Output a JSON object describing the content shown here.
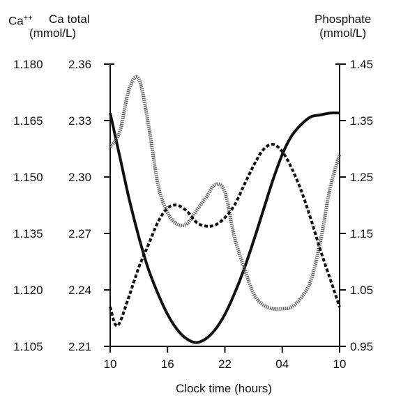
{
  "chart_data": {
    "type": "line",
    "title": "",
    "xlabel": "Clock time (hours)",
    "x_ticks": [
      "10",
      "16",
      "22",
      "04",
      "10"
    ],
    "x_tick_hours_elapsed": [
      0,
      6,
      12,
      18,
      24
    ],
    "xlim": [
      0,
      24
    ],
    "left_axis_1": {
      "label_base": "Ca",
      "label_sup": "++",
      "ticks": [
        "1.180",
        "1.165",
        "1.150",
        "1.135",
        "1.120",
        "1.105"
      ],
      "ylim": [
        1.105,
        1.18
      ]
    },
    "left_axis_2": {
      "label_line1": "Ca total",
      "label_line2": "(mmol/L)",
      "ticks": [
        "2.36",
        "2.33",
        "2.30",
        "2.27",
        "2.24",
        "2.21"
      ],
      "ylim": [
        2.21,
        2.36
      ]
    },
    "right_axis": {
      "label_line1": "Phosphate",
      "label_line2": "(mmol/L)",
      "ticks": [
        "1.45",
        "1.35",
        "1.25",
        "1.15",
        "1.05",
        "0.95"
      ],
      "ylim": [
        0.95,
        1.45
      ]
    },
    "grid": false,
    "legend": "none",
    "series": [
      {
        "axis": "left_axis_2",
        "style": "solid",
        "x": [
          0,
          1,
          2,
          3,
          4,
          5,
          6,
          7,
          8,
          9,
          10,
          11,
          12,
          13,
          14,
          15,
          16,
          17,
          18,
          19,
          20,
          21,
          22,
          23,
          24
        ],
        "y": [
          2.334,
          2.311,
          2.288,
          2.268,
          2.251,
          2.238,
          2.227,
          2.219,
          2.214,
          2.212,
          2.214,
          2.219,
          2.227,
          2.238,
          2.251,
          2.266,
          2.282,
          2.298,
          2.312,
          2.322,
          2.328,
          2.332,
          2.333,
          2.334,
          2.334
        ]
      },
      {
        "axis": "left_axis_1",
        "style": "dotted",
        "x": [
          0,
          1,
          2,
          3,
          4,
          5,
          6,
          7,
          8,
          9,
          10,
          11,
          12,
          13,
          14,
          15,
          16,
          17,
          18,
          19,
          20,
          21,
          22,
          23,
          24
        ],
        "y": [
          1.158,
          1.162,
          1.1735,
          1.176,
          1.164,
          1.148,
          1.1405,
          1.1375,
          1.1375,
          1.141,
          1.1445,
          1.148,
          1.146,
          1.134,
          1.126,
          1.119,
          1.116,
          1.115,
          1.115,
          1.1155,
          1.118,
          1.1225,
          1.133,
          1.147,
          1.156
        ]
      },
      {
        "axis": "right_axis",
        "style": "dashed",
        "x": [
          0,
          0.5,
          1,
          2,
          3,
          4,
          5,
          6,
          7,
          8,
          9,
          10,
          11,
          12,
          13,
          14,
          15,
          16,
          17,
          18,
          19,
          20,
          21,
          22,
          23,
          24
        ],
        "y": [
          1.02,
          0.99,
          0.992,
          1.04,
          1.09,
          1.13,
          1.17,
          1.195,
          1.2,
          1.19,
          1.17,
          1.163,
          1.165,
          1.178,
          1.2,
          1.235,
          1.27,
          1.298,
          1.308,
          1.295,
          1.265,
          1.225,
          1.175,
          1.12,
          1.07,
          1.02
        ]
      }
    ]
  }
}
